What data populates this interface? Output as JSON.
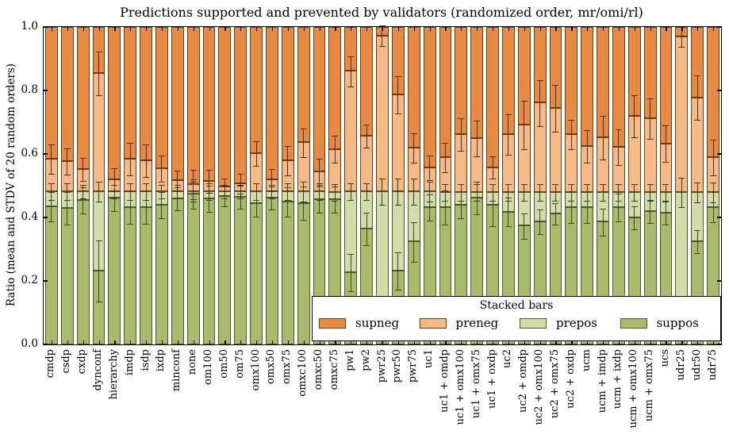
{
  "title": "Predictions supported and prevented by validators (randomized order, mr/omi/rl)",
  "axes": {
    "ylabel": "Ratio (mean and STDV of 20 random orders)",
    "yticks": [
      0.0,
      0.2,
      0.4,
      0.6,
      0.8,
      1.0
    ],
    "ytick_labels": [
      "0.0",
      "0.2",
      "0.4",
      "0.6",
      "0.8",
      "1.0"
    ],
    "ylim": [
      0.0,
      1.0
    ],
    "grid": false
  },
  "legend": {
    "title": "Stacked bars",
    "position": "lower right",
    "entries": [
      {
        "label": "supneg",
        "color": "#e78a43"
      },
      {
        "label": "preneg",
        "color": "#f4b987"
      },
      {
        "label": "prepos",
        "color": "#d2dba9"
      },
      {
        "label": "suppos",
        "color": "#a9ba6d"
      }
    ]
  },
  "colors": {
    "supneg": "#e78a43",
    "preneg": "#f4b987",
    "prepos": "#d2dba9",
    "suppos": "#a9ba6d",
    "edge_orange": "#6b3d12",
    "edge_green": "#4c5a24",
    "spine": "#000000"
  },
  "chart_data": {
    "type": "bar",
    "subtype": "stacked-vertical-with-errorbars",
    "title": "Predictions supported and prevented by validators (randomized order, mr/omi/rl)",
    "xlabel": "",
    "ylabel": "Ratio (mean and STDV of 20 random orders)",
    "ylim": [
      0.0,
      1.0
    ],
    "stack_order_bottom_to_top": [
      "suppos",
      "prepos",
      "preneg",
      "supneg"
    ],
    "categories": [
      "cmdp",
      "csdp",
      "cxdp",
      "dynconf",
      "hierarchy",
      "imdp",
      "isdp",
      "ixdp",
      "minconf",
      "none",
      "om100",
      "om50",
      "om75",
      "omx100",
      "omx50",
      "omx75",
      "omxc100",
      "omxc50",
      "omxc75",
      "pw1",
      "pw2",
      "pwr25",
      "pwr50",
      "pwr75",
      "uc1",
      "uc1 + omdp",
      "uc1 + omx100",
      "uc1 + omx75",
      "uc1 + oxdp",
      "uc2",
      "uc2 + omdp",
      "uc2 + omx100",
      "uc2 + omx75",
      "uc2 + oxdp",
      "ucm",
      "ucm + imdp",
      "ucm + ixdp",
      "ucm + omx100",
      "ucm + omx75",
      "ucs",
      "udr25",
      "udr50",
      "udr75"
    ],
    "series": [
      {
        "name": "suppos",
        "color": "#a9ba6d",
        "values": [
          0.435,
          0.43,
          0.455,
          0.233,
          0.462,
          0.432,
          0.432,
          0.44,
          0.46,
          0.475,
          0.46,
          0.468,
          0.465,
          0.445,
          0.462,
          0.45,
          0.446,
          0.458,
          0.458,
          0.228,
          0.366,
          0.02,
          0.233,
          0.324,
          0.433,
          0.433,
          0.441,
          0.462,
          0.441,
          0.418,
          0.374,
          0.387,
          0.412,
          0.433,
          0.433,
          0.387,
          0.433,
          0.399,
          0.42,
          0.416,
          0.02,
          0.324,
          0.433
        ]
      },
      {
        "name": "prepos",
        "color": "#d2dba9",
        "values": [
          0.048,
          0.053,
          0.028,
          0.25,
          0.021,
          0.051,
          0.051,
          0.043,
          0.023,
          0.008,
          0.023,
          0.015,
          0.018,
          0.038,
          0.021,
          0.033,
          0.037,
          0.025,
          0.023,
          0.255,
          0.117,
          0.463,
          0.25,
          0.159,
          0.05,
          0.048,
          0.04,
          0.019,
          0.04,
          0.063,
          0.107,
          0.094,
          0.069,
          0.048,
          0.048,
          0.094,
          0.048,
          0.082,
          0.061,
          0.065,
          0.461,
          0.157,
          0.048
        ]
      },
      {
        "name": "preneg",
        "color": "#f4b987",
        "values": [
          0.102,
          0.095,
          0.07,
          0.372,
          0.037,
          0.102,
          0.097,
          0.072,
          0.035,
          0.022,
          0.033,
          0.014,
          0.025,
          0.12,
          0.037,
          0.097,
          0.154,
          0.062,
          0.135,
          0.379,
          0.175,
          0.49,
          0.304,
          0.137,
          0.075,
          0.109,
          0.181,
          0.168,
          0.077,
          0.181,
          0.212,
          0.281,
          0.264,
          0.182,
          0.143,
          0.172,
          0.142,
          0.239,
          0.231,
          0.152,
          0.489,
          0.297,
          0.109
        ]
      },
      {
        "name": "supneg",
        "color": "#e78a43",
        "values": [
          0.415,
          0.422,
          0.447,
          0.145,
          0.48,
          0.415,
          0.42,
          0.445,
          0.482,
          0.495,
          0.484,
          0.503,
          0.492,
          0.397,
          0.48,
          0.42,
          0.363,
          0.455,
          0.384,
          0.138,
          0.342,
          0.027,
          0.213,
          0.38,
          0.442,
          0.41,
          0.338,
          0.351,
          0.442,
          0.338,
          0.307,
          0.238,
          0.255,
          0.337,
          0.376,
          0.347,
          0.377,
          0.28,
          0.288,
          0.367,
          0.03,
          0.222,
          0.41
        ]
      }
    ],
    "error_bars": {
      "description": "STDV whiskers drawn at the three internal stack boundaries of each bar",
      "boundaries": [
        "suppos_top",
        "prepos_top",
        "preneg_top"
      ],
      "std_suppos_top": [
        0.046,
        0.05,
        0.04,
        0.095,
        0.04,
        0.05,
        0.05,
        0.04,
        0.035,
        0.045,
        0.04,
        0.03,
        0.035,
        0.04,
        0.035,
        0.045,
        0.052,
        0.04,
        0.04,
        0.057,
        0.05,
        0.015,
        0.057,
        0.062,
        0.04,
        0.052,
        0.042,
        0.05,
        0.065,
        0.044,
        0.039,
        0.037,
        0.033,
        0.047,
        0.047,
        0.041,
        0.042,
        0.035,
        0.035,
        0.035,
        0.015,
        0.035,
        0.046
      ],
      "std_prepos_top": [
        0.025,
        0.025,
        0.02,
        0.03,
        0.02,
        0.025,
        0.025,
        0.02,
        0.02,
        0.03,
        0.025,
        0.02,
        0.02,
        0.025,
        0.02,
        0.025,
        0.03,
        0.025,
        0.025,
        0.025,
        0.025,
        0.04,
        0.04,
        0.04,
        0.03,
        0.025,
        0.025,
        0.025,
        0.025,
        0.025,
        0.025,
        0.025,
        0.025,
        0.025,
        0.025,
        0.025,
        0.025,
        0.025,
        0.025,
        0.025,
        0.045,
        0.03,
        0.03
      ],
      "std_preneg_top": [
        0.044,
        0.04,
        0.035,
        0.068,
        0.035,
        0.05,
        0.05,
        0.04,
        0.03,
        0.045,
        0.035,
        0.025,
        0.03,
        0.037,
        0.033,
        0.045,
        0.044,
        0.04,
        0.041,
        0.046,
        0.035,
        0.031,
        0.057,
        0.046,
        0.037,
        0.045,
        0.05,
        0.055,
        0.034,
        0.062,
        0.075,
        0.071,
        0.073,
        0.045,
        0.05,
        0.068,
        0.055,
        0.064,
        0.062,
        0.056,
        0.031,
        0.069,
        0.056
      ]
    },
    "legend_entries": [
      "supneg",
      "preneg",
      "prepos",
      "suppos"
    ]
  }
}
